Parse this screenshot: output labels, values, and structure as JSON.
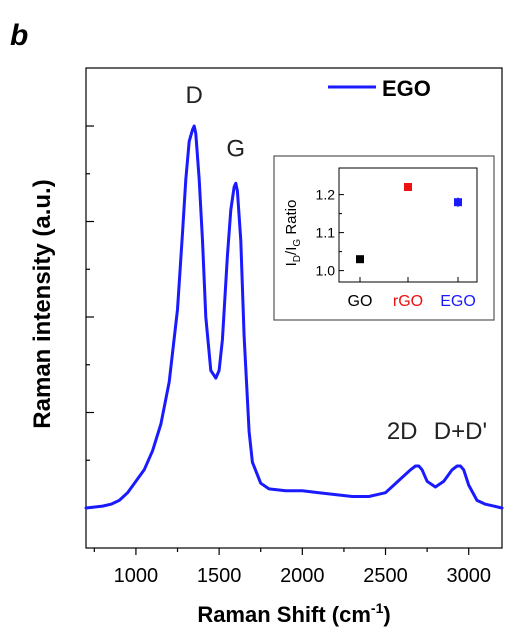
{
  "panel_label": "b",
  "legend": {
    "label": "EGO",
    "color": "#1a1aff"
  },
  "chart_data": [
    {
      "type": "line",
      "title": "",
      "xlabel_main": "Raman Shift (cm",
      "xlabel_sup": "-1",
      "xlabel_close": ")",
      "ylabel": "Raman intensity (a.u.)",
      "xlim": [
        700,
        3200
      ],
      "ylim": [
        0,
        1.0
      ],
      "xticks": [
        1000,
        1500,
        2000,
        2500,
        3000
      ],
      "xtick_labels": [
        "1000",
        "1500",
        "2000",
        "2500",
        "3000"
      ],
      "yticks": [
        0,
        0.25,
        0.5,
        0.75,
        1.0
      ],
      "y_tick_labels_shown": false,
      "legend_position": "top-right",
      "series": [
        {
          "name": "EGO",
          "color": "#1a1aff",
          "x": [
            700,
            800,
            850,
            900,
            950,
            1000,
            1050,
            1100,
            1150,
            1200,
            1250,
            1280,
            1300,
            1320,
            1340,
            1350,
            1360,
            1380,
            1400,
            1420,
            1450,
            1480,
            1500,
            1520,
            1550,
            1570,
            1590,
            1600,
            1610,
            1630,
            1650,
            1680,
            1700,
            1750,
            1800,
            1900,
            2000,
            2100,
            2200,
            2300,
            2400,
            2500,
            2550,
            2600,
            2650,
            2680,
            2700,
            2720,
            2750,
            2800,
            2850,
            2900,
            2930,
            2950,
            2970,
            3000,
            3050,
            3100,
            3150,
            3200
          ],
          "y": [
            0.0,
            0.005,
            0.01,
            0.02,
            0.04,
            0.07,
            0.1,
            0.15,
            0.22,
            0.33,
            0.52,
            0.72,
            0.86,
            0.96,
            0.99,
            1.0,
            0.98,
            0.86,
            0.7,
            0.5,
            0.36,
            0.34,
            0.36,
            0.44,
            0.66,
            0.78,
            0.84,
            0.85,
            0.83,
            0.7,
            0.45,
            0.2,
            0.12,
            0.065,
            0.05,
            0.045,
            0.045,
            0.04,
            0.035,
            0.03,
            0.03,
            0.04,
            0.06,
            0.08,
            0.1,
            0.11,
            0.11,
            0.1,
            0.07,
            0.055,
            0.07,
            0.1,
            0.11,
            0.11,
            0.1,
            0.06,
            0.02,
            0.01,
            0.005,
            0.0
          ]
        }
      ],
      "annotations": [
        {
          "text": "D",
          "x": 1350,
          "y": 1.06
        },
        {
          "text": "G",
          "x": 1600,
          "y": 0.92
        },
        {
          "text": "2D",
          "x": 2600,
          "y": 0.18
        },
        {
          "text": "D+D'",
          "x": 2950,
          "y": 0.18
        }
      ]
    },
    {
      "type": "scatter",
      "title": "",
      "xlabel": "",
      "ylabel_main": "I",
      "ylabel_sub1": "D",
      "ylabel_mid": "/I",
      "ylabel_sub2": "G",
      "ylabel_tail": " Ratio",
      "categories": [
        "GO",
        "rGO",
        "EGO"
      ],
      "category_colors": [
        "#000000",
        "#ee1111",
        "#1a1aff"
      ],
      "values": [
        1.03,
        1.22,
        1.18
      ],
      "errors": [
        0.005,
        0.006,
        0.012
      ],
      "ylim": [
        0.97,
        1.27
      ],
      "yticks": [
        1.0,
        1.1,
        1.2
      ],
      "ytick_labels": [
        "1.0",
        "1.1",
        "1.2"
      ]
    }
  ]
}
